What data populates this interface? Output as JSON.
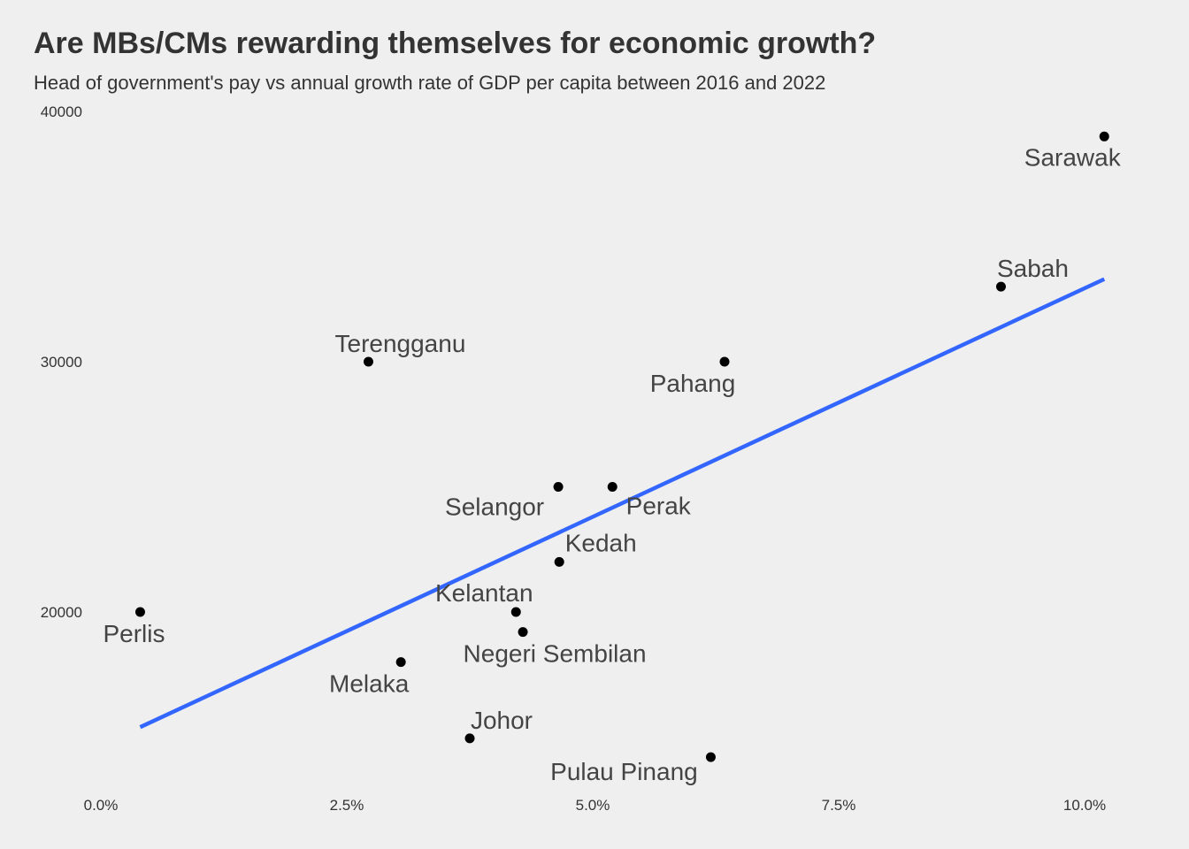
{
  "title": "Are MBs/CMs rewarding themselves for economic growth?",
  "subtitle": "Head of government's pay vs annual growth rate of GDP per capita between 2016 and 2022",
  "colors": {
    "background": "#efefef",
    "point": "#000000",
    "trend_line": "#3366ff",
    "text": "#333333"
  },
  "chart_data": {
    "type": "scatter",
    "title": "Are MBs/CMs rewarding themselves for economic growth?",
    "subtitle": "Head of government's pay vs annual growth rate of GDP per capita between 2016 and 2022",
    "xlabel": "",
    "ylabel": "",
    "xlim": [
      0.0,
      0.101
    ],
    "ylim": [
      13000,
      40000
    ],
    "x_ticks": [
      0.0,
      0.025,
      0.05,
      0.075,
      0.1
    ],
    "x_tick_labels": [
      "0.0%",
      "2.5%",
      "5.0%",
      "7.5%",
      "10.0%"
    ],
    "y_ticks": [
      20000,
      30000,
      40000
    ],
    "y_tick_labels": [
      "20000",
      "30000",
      "40000"
    ],
    "grid": false,
    "points": [
      {
        "label": "Sarawak",
        "x": 0.102,
        "y": 39000
      },
      {
        "label": "Sabah",
        "x": 0.0915,
        "y": 33000
      },
      {
        "label": "Terengganu",
        "x": 0.0272,
        "y": 30000
      },
      {
        "label": "Pahang",
        "x": 0.0634,
        "y": 30000
      },
      {
        "label": "Selangor",
        "x": 0.0465,
        "y": 25000
      },
      {
        "label": "Perak",
        "x": 0.052,
        "y": 25000
      },
      {
        "label": "Kedah",
        "x": 0.0466,
        "y": 22000
      },
      {
        "label": "Kelantan",
        "x": 0.0422,
        "y": 20000
      },
      {
        "label": "Negeri Sembilan",
        "x": 0.0429,
        "y": 19200
      },
      {
        "label": "Perlis",
        "x": 0.004,
        "y": 20000
      },
      {
        "label": "Melaka",
        "x": 0.0305,
        "y": 18000
      },
      {
        "label": "Johor",
        "x": 0.0375,
        "y": 14950
      },
      {
        "label": "Pulau Pinang",
        "x": 0.062,
        "y": 14200
      }
    ],
    "trend_line": {
      "x": [
        0.004,
        0.102
      ],
      "y": [
        15400,
        33300
      ]
    }
  }
}
